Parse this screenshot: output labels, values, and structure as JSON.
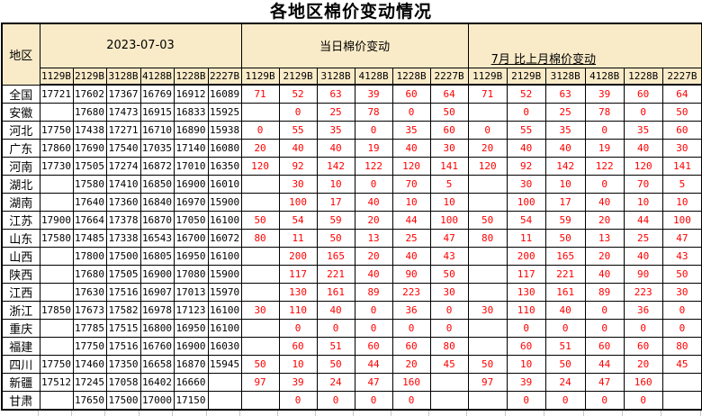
{
  "colors": {
    "header_bg": "#FAEBC8",
    "change_red": "#FF0000",
    "border": "#000000",
    "gridline": "#C6C6C6"
  },
  "chart_data": {
    "type": "table",
    "title": "各地区棉价变动情况",
    "region_header": "地区",
    "column_groups": [
      {
        "label": "2023-07-03"
      },
      {
        "label": "当日棉价变动"
      },
      {
        "label": "7月 比上月棉价变动"
      }
    ],
    "grade_columns": [
      "1129B",
      "2129B",
      "3128B",
      "4128B",
      "1228B",
      "2227B"
    ],
    "rows": [
      {
        "region": "全国",
        "prices": [
          "17721",
          "17602",
          "17367",
          "16769",
          "16912",
          "16089"
        ],
        "daily_change": [
          "71",
          "52",
          "63",
          "39",
          "60",
          "64"
        ],
        "monthly_change": [
          "71",
          "52",
          "63",
          "39",
          "60",
          "64"
        ]
      },
      {
        "region": "安徽",
        "prices": [
          "",
          "17680",
          "17473",
          "16915",
          "16833",
          "15925"
        ],
        "daily_change": [
          "",
          "0",
          "25",
          "78",
          "0",
          "50"
        ],
        "monthly_change": [
          "",
          "0",
          "25",
          "78",
          "0",
          "50"
        ]
      },
      {
        "region": "河北",
        "prices": [
          "17750",
          "17438",
          "17271",
          "16710",
          "16890",
          "15938"
        ],
        "daily_change": [
          "0",
          "55",
          "35",
          "0",
          "35",
          "60"
        ],
        "monthly_change": [
          "0",
          "55",
          "35",
          "0",
          "35",
          "60"
        ]
      },
      {
        "region": "广东",
        "prices": [
          "17860",
          "17690",
          "17540",
          "17035",
          "17140",
          "16080"
        ],
        "daily_change": [
          "20",
          "40",
          "40",
          "19",
          "40",
          "30"
        ],
        "monthly_change": [
          "20",
          "40",
          "40",
          "19",
          "40",
          "30"
        ]
      },
      {
        "region": "河南",
        "prices": [
          "17730",
          "17505",
          "17274",
          "16872",
          "17010",
          "16350"
        ],
        "daily_change": [
          "120",
          "92",
          "142",
          "122",
          "120",
          "141"
        ],
        "monthly_change": [
          "120",
          "92",
          "142",
          "122",
          "120",
          "141"
        ]
      },
      {
        "region": "湖北",
        "prices": [
          "",
          "17580",
          "17410",
          "16850",
          "16900",
          "16010"
        ],
        "daily_change": [
          "",
          "30",
          "10",
          "0",
          "70",
          "5"
        ],
        "monthly_change": [
          "",
          "30",
          "10",
          "0",
          "70",
          "5"
        ]
      },
      {
        "region": "湖南",
        "prices": [
          "",
          "17640",
          "17360",
          "16840",
          "16970",
          "15900"
        ],
        "daily_change": [
          "",
          "100",
          "17",
          "40",
          "10",
          "10"
        ],
        "monthly_change": [
          "",
          "100",
          "17",
          "40",
          "10",
          "10"
        ]
      },
      {
        "region": "江苏",
        "prices": [
          "17900",
          "17664",
          "17378",
          "16870",
          "17050",
          "16100"
        ],
        "daily_change": [
          "50",
          "54",
          "59",
          "20",
          "44",
          "100"
        ],
        "monthly_change": [
          "50",
          "54",
          "59",
          "20",
          "44",
          "100"
        ]
      },
      {
        "region": "山东",
        "prices": [
          "17580",
          "17485",
          "17338",
          "16543",
          "16700",
          "16072"
        ],
        "daily_change": [
          "80",
          "11",
          "50",
          "13",
          "25",
          "47"
        ],
        "monthly_change": [
          "80",
          "11",
          "50",
          "13",
          "25",
          "47"
        ]
      },
      {
        "region": "山西",
        "prices": [
          "",
          "17800",
          "17500",
          "16805",
          "16950",
          "16100"
        ],
        "daily_change": [
          "",
          "200",
          "165",
          "20",
          "40",
          "43"
        ],
        "monthly_change": [
          "",
          "200",
          "165",
          "20",
          "40",
          "43"
        ]
      },
      {
        "region": "陕西",
        "prices": [
          "",
          "17680",
          "17505",
          "16900",
          "17080",
          "15900"
        ],
        "daily_change": [
          "",
          "117",
          "221",
          "40",
          "90",
          "50"
        ],
        "monthly_change": [
          "",
          "117",
          "221",
          "40",
          "90",
          "50"
        ]
      },
      {
        "region": "江西",
        "prices": [
          "",
          "17630",
          "17516",
          "16907",
          "17013",
          "15970"
        ],
        "daily_change": [
          "",
          "130",
          "161",
          "89",
          "223",
          "30"
        ],
        "monthly_change": [
          "",
          "130",
          "161",
          "89",
          "223",
          "30"
        ]
      },
      {
        "region": "浙江",
        "prices": [
          "17850",
          "17673",
          "17582",
          "16978",
          "17123",
          "16100"
        ],
        "daily_change": [
          "30",
          "110",
          "40",
          "0",
          "36",
          "0"
        ],
        "monthly_change": [
          "30",
          "110",
          "40",
          "0",
          "36",
          "0"
        ]
      },
      {
        "region": "重庆",
        "prices": [
          "",
          "17785",
          "17515",
          "16800",
          "16950",
          "16100"
        ],
        "daily_change": [
          "",
          "0",
          "0",
          "0",
          "0",
          "0"
        ],
        "monthly_change": [
          "",
          "0",
          "0",
          "0",
          "0",
          "0"
        ]
      },
      {
        "region": "福建",
        "prices": [
          "",
          "17750",
          "17516",
          "16760",
          "16900",
          "16030"
        ],
        "daily_change": [
          "",
          "60",
          "51",
          "60",
          "60",
          "80"
        ],
        "monthly_change": [
          "",
          "60",
          "51",
          "60",
          "60",
          "80"
        ]
      },
      {
        "region": "四川",
        "prices": [
          "17750",
          "17460",
          "17350",
          "16658",
          "16870",
          "15945"
        ],
        "daily_change": [
          "50",
          "10",
          "50",
          "44",
          "20",
          "45"
        ],
        "monthly_change": [
          "50",
          "10",
          "50",
          "44",
          "20",
          "45"
        ]
      },
      {
        "region": "新疆",
        "prices": [
          "17512",
          "17245",
          "17058",
          "16402",
          "16660",
          ""
        ],
        "daily_change": [
          "97",
          "39",
          "24",
          "47",
          "160",
          ""
        ],
        "monthly_change": [
          "97",
          "39",
          "24",
          "47",
          "160",
          ""
        ]
      },
      {
        "region": "甘肃",
        "prices": [
          "",
          "17650",
          "17500",
          "17000",
          "17150",
          ""
        ],
        "daily_change": [
          "",
          "0",
          "0",
          "0",
          "0",
          ""
        ],
        "monthly_change": [
          "",
          "0",
          "0",
          "0",
          "0",
          ""
        ]
      }
    ]
  }
}
